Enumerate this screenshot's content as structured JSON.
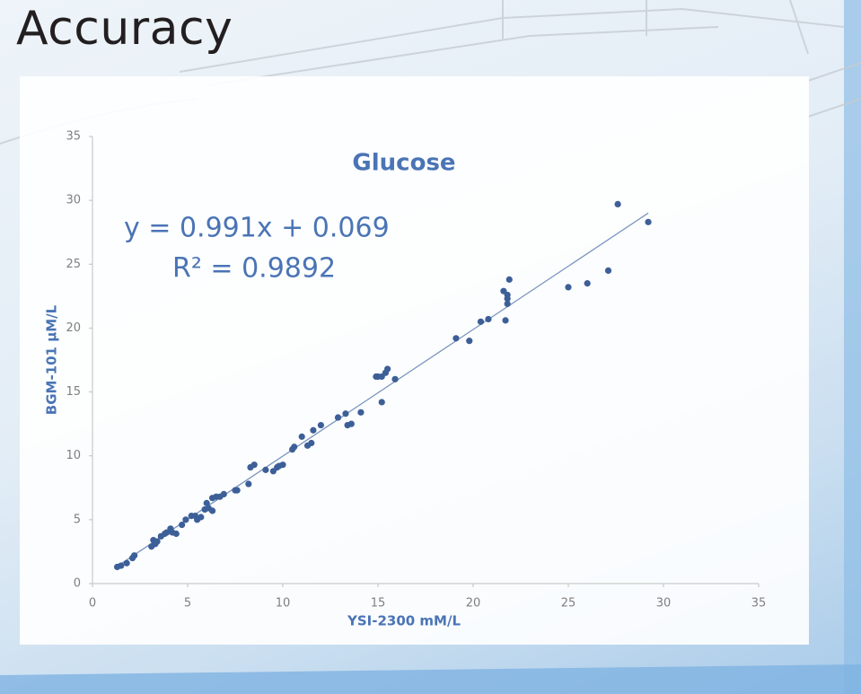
{
  "header": {
    "title": "Accuracy"
  },
  "chart_data": {
    "type": "scatter",
    "title": "Glucose",
    "x_label": "YSI-2300 mM/L",
    "y_label": "BGM-101 µM/L",
    "x": [
      1.3,
      1.5,
      1.8,
      2.1,
      2.2,
      3.1,
      3.2,
      3.3,
      3.4,
      3.6,
      3.8,
      3.9,
      4.1,
      4.2,
      4.4,
      4.7,
      4.9,
      5.2,
      5.4,
      5.5,
      5.7,
      5.9,
      6.0,
      6.1,
      6.3,
      6.3,
      6.5,
      6.7,
      6.9,
      7.5,
      7.6,
      8.2,
      8.3,
      8.5,
      9.1,
      9.5,
      9.7,
      9.8,
      10.0,
      10.5,
      10.6,
      11.0,
      11.3,
      11.5,
      11.6,
      12.0,
      12.9,
      13.3,
      13.4,
      13.6,
      14.1,
      14.9,
      15.0,
      15.2,
      15.2,
      15.4,
      15.5,
      15.9,
      19.1,
      19.8,
      20.4,
      20.8,
      21.6,
      21.7,
      21.8,
      21.8,
      21.8,
      21.9,
      25.0,
      26.0,
      27.1,
      27.6,
      29.2
    ],
    "values": [
      1.3,
      1.4,
      1.6,
      2.0,
      2.2,
      2.9,
      3.4,
      3.1,
      3.3,
      3.7,
      3.9,
      4.0,
      4.3,
      4.0,
      3.9,
      4.6,
      5.0,
      5.3,
      5.3,
      5.0,
      5.2,
      5.8,
      6.3,
      5.9,
      5.7,
      6.7,
      6.8,
      6.8,
      7.0,
      7.3,
      7.3,
      7.8,
      9.1,
      9.3,
      8.9,
      8.8,
      9.1,
      9.2,
      9.3,
      10.5,
      10.7,
      11.5,
      10.8,
      11.0,
      12.0,
      12.4,
      13.0,
      13.3,
      12.4,
      12.5,
      13.4,
      16.2,
      16.2,
      16.2,
      14.2,
      16.5,
      16.8,
      16.0,
      19.2,
      19.0,
      20.5,
      20.7,
      22.9,
      20.6,
      21.9,
      22.3,
      22.6,
      23.8,
      23.2,
      23.5,
      24.5,
      29.7,
      28.3
    ],
    "color": "#3d5f98",
    "trendline": {
      "equation": "y = 0.991x + 0.069",
      "slope": 0.991,
      "intercept": 0.069,
      "r_squared_label": "R² = 0.9892",
      "color": "#7b96bf"
    },
    "xlim": [
      0,
      35
    ],
    "xticks": [
      0,
      5,
      10,
      15,
      20,
      25,
      30,
      35
    ],
    "ylim": [
      0,
      35
    ],
    "yticks": [
      0,
      5,
      10,
      15,
      20,
      25,
      30,
      35
    ],
    "grid": false
  }
}
